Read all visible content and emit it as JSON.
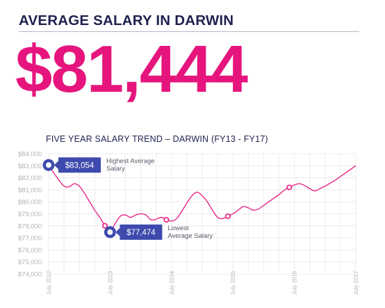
{
  "header": {
    "title": "AVERAGE SALARY IN DARWIN",
    "big_value": "$81,444"
  },
  "colors": {
    "title": "#1f2150",
    "accent": "#e6157e",
    "line": "#e6157e",
    "callout_box": "#3f4aae",
    "marker_ring": "#3f4aae",
    "grid": "#ececec",
    "axis_text": "#b4b4b4"
  },
  "chart_data": {
    "type": "line",
    "title": "FIVE YEAR SALARY TREND – DARWIN (FY13 - FY17)",
    "xlabel": "",
    "ylabel": "",
    "x_ticks": [
      "July 2012",
      "July 2013",
      "July 2014",
      "July 2015",
      "July 2016",
      "July 2017"
    ],
    "y_ticks": [
      "$84,000",
      "$83,000",
      "$82,000",
      "$81,000",
      "$80,000",
      "$79,000",
      "$78,000",
      "$77,000",
      "$76,000",
      "$75,000",
      "$74,000"
    ],
    "ylim": [
      74000,
      84000
    ],
    "xlim": [
      "2012-07",
      "2017-07"
    ],
    "grid": true,
    "series": [
      {
        "dates": [
          "2012-07",
          "2012-08",
          "2012-09",
          "2012-10",
          "2012-11",
          "2012-12",
          "2013-01",
          "2013-02",
          "2013-03",
          "2013-04",
          "2013-05",
          "2013-06",
          "2013-07",
          "2013-08",
          "2013-09",
          "2013-10",
          "2013-11",
          "2013-12",
          "2014-01",
          "2014-02",
          "2014-03",
          "2014-04",
          "2014-05",
          "2014-06",
          "2014-07",
          "2014-08",
          "2014-09",
          "2014-10",
          "2014-11",
          "2014-12",
          "2015-01",
          "2015-02",
          "2015-03",
          "2015-04",
          "2015-05",
          "2015-06",
          "2015-07",
          "2015-08",
          "2015-09",
          "2015-10",
          "2015-11",
          "2015-12",
          "2016-01",
          "2016-02",
          "2016-03",
          "2016-04",
          "2016-05",
          "2016-06",
          "2016-07",
          "2016-08",
          "2016-09",
          "2016-10",
          "2016-11",
          "2016-12",
          "2017-01",
          "2017-02",
          "2017-03",
          "2017-04",
          "2017-05",
          "2017-06",
          "2017-07"
        ],
        "values": [
          83054,
          82400,
          81800,
          81300,
          81250,
          81500,
          81300,
          80700,
          80000,
          79300,
          78700,
          78000,
          77474,
          78200,
          78800,
          78900,
          78700,
          78900,
          79000,
          78900,
          78500,
          78550,
          78700,
          78500,
          78400,
          78600,
          79200,
          79900,
          80500,
          80800,
          80500,
          80000,
          79300,
          78700,
          78600,
          78800,
          79000,
          79300,
          79600,
          79500,
          79300,
          79400,
          79700,
          80000,
          80300,
          80600,
          80950,
          81200,
          81400,
          81500,
          81350,
          81100,
          80900,
          81100,
          81300,
          81550,
          81800,
          82100,
          82400,
          82700,
          83000
        ]
      }
    ],
    "markers": [
      {
        "date": "2013-06",
        "value": 78000
      },
      {
        "date": "2014-06",
        "value": 78500
      },
      {
        "date": "2015-06",
        "value": 78800
      },
      {
        "date": "2016-06",
        "value": 81200
      }
    ],
    "annotations": [
      {
        "kind": "highest",
        "date": "2012-07",
        "value": 83054,
        "value_label": "$83,054",
        "text_lines": [
          "Highest Average",
          "Salary"
        ]
      },
      {
        "kind": "lowest",
        "date": "2013-07",
        "value": 77474,
        "value_label": "$77,474",
        "text_lines": [
          "Lowest",
          "Average Salary"
        ]
      }
    ]
  }
}
